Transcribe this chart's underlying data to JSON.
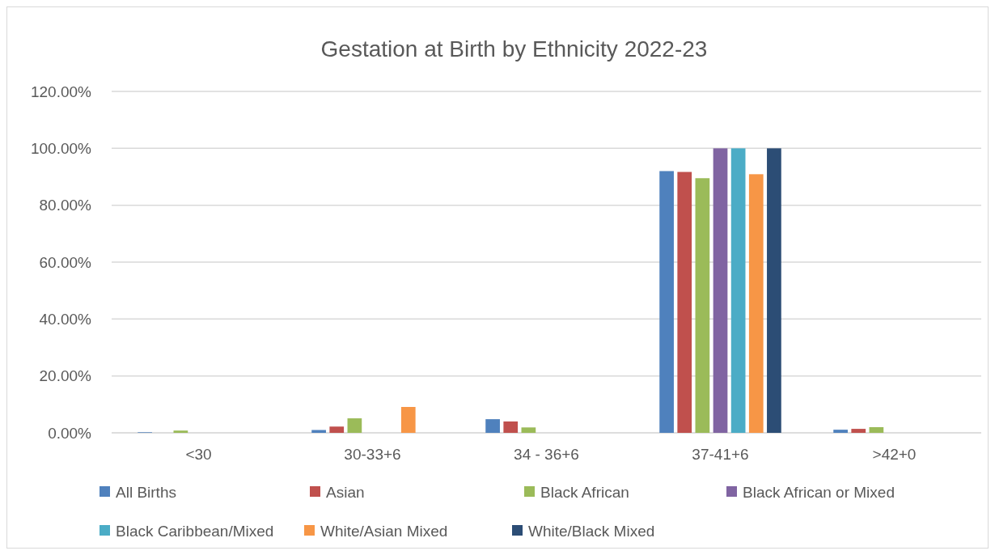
{
  "chart_data": {
    "type": "bar",
    "title": "Gestation at Birth by Ethnicity 2022-23",
    "categories": [
      "<30",
      "30-33+6",
      "34 - 36+6",
      "37-41+6",
      ">42+0"
    ],
    "series": [
      {
        "name": "All Births",
        "color": "#4f81bd",
        "values": [
          0.2,
          1.0,
          4.8,
          92.0,
          1.1
        ]
      },
      {
        "name": "Asian",
        "color": "#c0504d",
        "values": [
          0,
          2.2,
          4.0,
          91.7,
          1.4
        ]
      },
      {
        "name": "Black African",
        "color": "#9bbb59",
        "values": [
          0.8,
          5.1,
          1.9,
          89.5,
          2.0
        ]
      },
      {
        "name": "Black African or Mixed",
        "color": "#8064a2",
        "values": [
          0,
          0,
          0,
          100,
          0
        ]
      },
      {
        "name": "Black Caribbean/Mixed",
        "color": "#4bacc6",
        "values": [
          0,
          0,
          0,
          100,
          0
        ]
      },
      {
        "name": "White/Asian Mixed",
        "color": "#f79646",
        "values": [
          0,
          9.1,
          0,
          90.9,
          0
        ]
      },
      {
        "name": "White/Black Mixed",
        "color": "#2c4d75",
        "values": [
          0,
          0,
          0,
          100,
          0
        ]
      }
    ],
    "ylim": [
      0,
      120
    ],
    "yticks": [
      {
        "value": 0,
        "label": "0.00%"
      },
      {
        "value": 20,
        "label": "20.00%"
      },
      {
        "value": 40,
        "label": "40.00%"
      },
      {
        "value": 60,
        "label": "60.00%"
      },
      {
        "value": 80,
        "label": "80.00%"
      },
      {
        "value": 100,
        "label": "100.00%"
      },
      {
        "value": 120,
        "label": "120.00%"
      }
    ],
    "grid": "y",
    "legend": "bottom"
  }
}
